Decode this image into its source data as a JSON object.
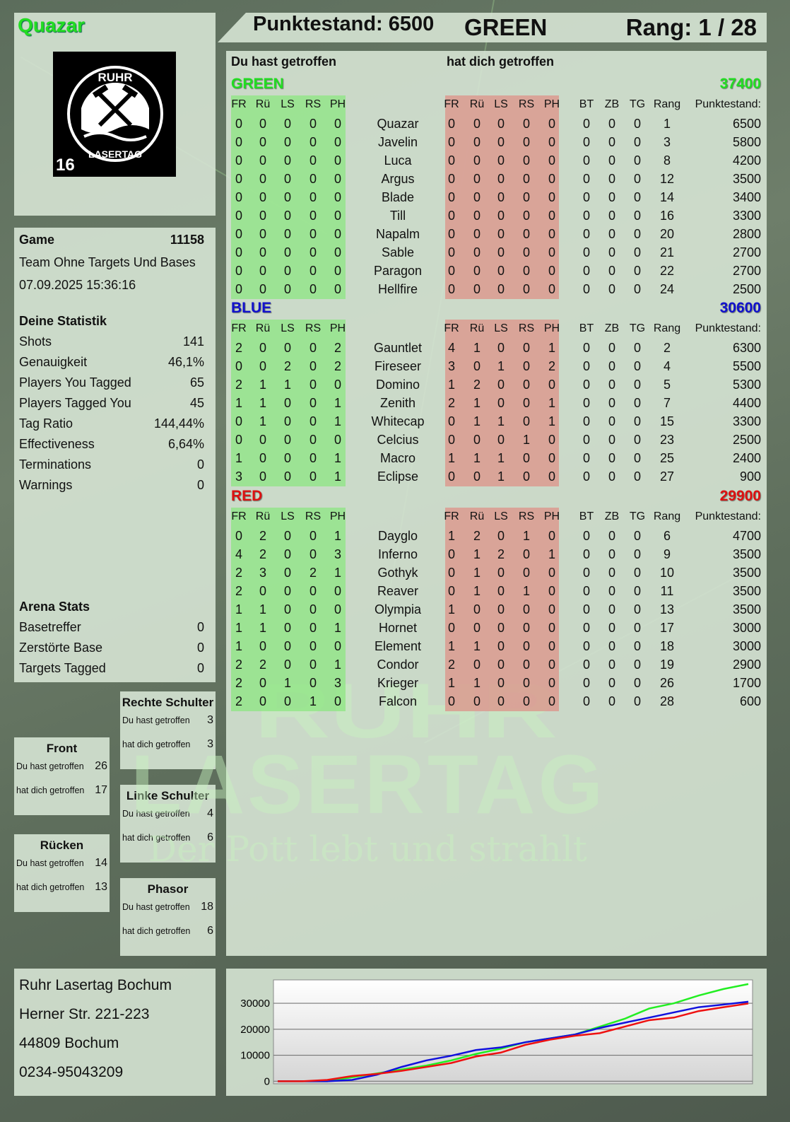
{
  "player": {
    "name": "Quazar",
    "color": "#22dd22"
  },
  "logo": {
    "top_text": "RUHR",
    "bottom_text": "LASERTAG",
    "age": "16"
  },
  "header": {
    "score": "Punktestand: 6500",
    "team": "GREEN",
    "rank": "Rang: 1 / 28"
  },
  "game": {
    "label": "Game",
    "number": "11158",
    "mode": "Team Ohne Targets Und Bases",
    "datetime": "07.09.2025 15:36:16"
  },
  "stats": {
    "title": "Deine Statistik",
    "items": [
      {
        "label": "Shots",
        "value": "141"
      },
      {
        "label": "Genauigkeit",
        "value": "46,1%"
      },
      {
        "label": "Players You Tagged",
        "value": "65"
      },
      {
        "label": "Players Tagged You",
        "value": "45"
      },
      {
        "label": "Tag Ratio",
        "value": "144,44%"
      },
      {
        "label": "Effectiveness",
        "value": "6,64%"
      },
      {
        "label": "Terminations",
        "value": "0"
      },
      {
        "label": "Warnings",
        "value": "0"
      }
    ]
  },
  "arena": {
    "title": "Arena Stats",
    "items": [
      {
        "label": "Basetreffer",
        "value": "0"
      },
      {
        "label": "Zerstörte Base",
        "value": "0"
      },
      {
        "label": "Targets Tagged",
        "value": "0"
      }
    ]
  },
  "hitzones": [
    {
      "title": "Rechte Schulter",
      "given_label": "Du hast getroffen",
      "given": "3",
      "taken_label": "hat dich getroffen",
      "taken": "3"
    },
    {
      "title": "Front",
      "given_label": "Du hast getroffen",
      "given": "26",
      "taken_label": "hat dich getroffen",
      "taken": "17"
    },
    {
      "title": "Linke Schulter",
      "given_label": "Du hast getroffen",
      "given": "4",
      "taken_label": "hat dich getroffen",
      "taken": "6"
    },
    {
      "title": "Rücken",
      "given_label": "Du hast getroffen",
      "given": "14",
      "taken_label": "hat dich getroffen",
      "taken": "13"
    },
    {
      "title": "Phasor",
      "given_label": "Du hast getroffen",
      "given": "18",
      "taken_label": "hat dich getroffen",
      "taken": "6"
    }
  ],
  "address": {
    "lines": [
      "Ruhr Lasertag Bochum",
      "Herner Str. 221-223",
      "44809 Bochum",
      "0234-95043209"
    ]
  },
  "watermark": {
    "line1": "RUHR",
    "line2": "LASERTAG",
    "slogan": "Der Pott lebt und strahlt"
  },
  "table": {
    "given_title": "Du hast getroffen",
    "taken_title": "hat dich getroffen",
    "hit_columns": [
      "FR",
      "Rü",
      "LS",
      "RS",
      "PH"
    ],
    "extra_columns": [
      "BT",
      "ZB",
      "TG",
      "Rang",
      "Punktestand:"
    ],
    "teams": [
      {
        "name": "GREEN",
        "total": "37400",
        "color": "#22dd22",
        "players": [
          {
            "name": "Quazar",
            "du": [
              0,
              0,
              0,
              0,
              0
            ],
            "dich": [
              0,
              0,
              0,
              0,
              0
            ],
            "bt": 0,
            "zb": 0,
            "tg": 0,
            "rang": 1,
            "punkte": 6500
          },
          {
            "name": "Javelin",
            "du": [
              0,
              0,
              0,
              0,
              0
            ],
            "dich": [
              0,
              0,
              0,
              0,
              0
            ],
            "bt": 0,
            "zb": 0,
            "tg": 0,
            "rang": 3,
            "punkte": 5800
          },
          {
            "name": "Luca",
            "du": [
              0,
              0,
              0,
              0,
              0
            ],
            "dich": [
              0,
              0,
              0,
              0,
              0
            ],
            "bt": 0,
            "zb": 0,
            "tg": 0,
            "rang": 8,
            "punkte": 4200
          },
          {
            "name": "Argus",
            "du": [
              0,
              0,
              0,
              0,
              0
            ],
            "dich": [
              0,
              0,
              0,
              0,
              0
            ],
            "bt": 0,
            "zb": 0,
            "tg": 0,
            "rang": 12,
            "punkte": 3500
          },
          {
            "name": "Blade",
            "du": [
              0,
              0,
              0,
              0,
              0
            ],
            "dich": [
              0,
              0,
              0,
              0,
              0
            ],
            "bt": 0,
            "zb": 0,
            "tg": 0,
            "rang": 14,
            "punkte": 3400
          },
          {
            "name": "Till",
            "du": [
              0,
              0,
              0,
              0,
              0
            ],
            "dich": [
              0,
              0,
              0,
              0,
              0
            ],
            "bt": 0,
            "zb": 0,
            "tg": 0,
            "rang": 16,
            "punkte": 3300
          },
          {
            "name": "Napalm",
            "du": [
              0,
              0,
              0,
              0,
              0
            ],
            "dich": [
              0,
              0,
              0,
              0,
              0
            ],
            "bt": 0,
            "zb": 0,
            "tg": 0,
            "rang": 20,
            "punkte": 2800
          },
          {
            "name": "Sable",
            "du": [
              0,
              0,
              0,
              0,
              0
            ],
            "dich": [
              0,
              0,
              0,
              0,
              0
            ],
            "bt": 0,
            "zb": 0,
            "tg": 0,
            "rang": 21,
            "punkte": 2700
          },
          {
            "name": "Paragon",
            "du": [
              0,
              0,
              0,
              0,
              0
            ],
            "dich": [
              0,
              0,
              0,
              0,
              0
            ],
            "bt": 0,
            "zb": 0,
            "tg": 0,
            "rang": 22,
            "punkte": 2700
          },
          {
            "name": "Hellfire",
            "du": [
              0,
              0,
              0,
              0,
              0
            ],
            "dich": [
              0,
              0,
              0,
              0,
              0
            ],
            "bt": 0,
            "zb": 0,
            "tg": 0,
            "rang": 24,
            "punkte": 2500
          }
        ]
      },
      {
        "name": "BLUE",
        "total": "30600",
        "color": "#1111cc",
        "players": [
          {
            "name": "Gauntlet",
            "du": [
              2,
              0,
              0,
              0,
              2
            ],
            "dich": [
              4,
              1,
              0,
              0,
              1
            ],
            "bt": 0,
            "zb": 0,
            "tg": 0,
            "rang": 2,
            "punkte": 6300
          },
          {
            "name": "Fireseer",
            "du": [
              0,
              0,
              2,
              0,
              2
            ],
            "dich": [
              3,
              0,
              1,
              0,
              2
            ],
            "bt": 0,
            "zb": 0,
            "tg": 0,
            "rang": 4,
            "punkte": 5500
          },
          {
            "name": "Domino",
            "du": [
              2,
              1,
              1,
              0,
              0
            ],
            "dich": [
              1,
              2,
              0,
              0,
              0
            ],
            "bt": 0,
            "zb": 0,
            "tg": 0,
            "rang": 5,
            "punkte": 5300
          },
          {
            "name": "Zenith",
            "du": [
              1,
              1,
              0,
              0,
              1
            ],
            "dich": [
              2,
              1,
              0,
              0,
              1
            ],
            "bt": 0,
            "zb": 0,
            "tg": 0,
            "rang": 7,
            "punkte": 4400
          },
          {
            "name": "Whitecap",
            "du": [
              0,
              1,
              0,
              0,
              1
            ],
            "dich": [
              0,
              1,
              1,
              0,
              1
            ],
            "bt": 0,
            "zb": 0,
            "tg": 0,
            "rang": 15,
            "punkte": 3300
          },
          {
            "name": "Celcius",
            "du": [
              0,
              0,
              0,
              0,
              0
            ],
            "dich": [
              0,
              0,
              0,
              1,
              0
            ],
            "bt": 0,
            "zb": 0,
            "tg": 0,
            "rang": 23,
            "punkte": 2500
          },
          {
            "name": "Macro",
            "du": [
              1,
              0,
              0,
              0,
              1
            ],
            "dich": [
              1,
              1,
              1,
              0,
              0
            ],
            "bt": 0,
            "zb": 0,
            "tg": 0,
            "rang": 25,
            "punkte": 2400
          },
          {
            "name": "Eclipse",
            "du": [
              3,
              0,
              0,
              0,
              1
            ],
            "dich": [
              0,
              0,
              1,
              0,
              0
            ],
            "bt": 0,
            "zb": 0,
            "tg": 0,
            "rang": 27,
            "punkte": 900
          }
        ]
      },
      {
        "name": "RED",
        "total": "29900",
        "color": "#dd1111",
        "players": [
          {
            "name": "Dayglo",
            "du": [
              0,
              2,
              0,
              0,
              1
            ],
            "dich": [
              1,
              2,
              0,
              1,
              0
            ],
            "bt": 0,
            "zb": 0,
            "tg": 0,
            "rang": 6,
            "punkte": 4700
          },
          {
            "name": "Inferno",
            "du": [
              4,
              2,
              0,
              0,
              3
            ],
            "dich": [
              0,
              1,
              2,
              0,
              1
            ],
            "bt": 0,
            "zb": 0,
            "tg": 0,
            "rang": 9,
            "punkte": 3500
          },
          {
            "name": "Gothyk",
            "du": [
              2,
              3,
              0,
              2,
              1
            ],
            "dich": [
              0,
              1,
              0,
              0,
              0
            ],
            "bt": 0,
            "zb": 0,
            "tg": 0,
            "rang": 10,
            "punkte": 3500
          },
          {
            "name": "Reaver",
            "du": [
              2,
              0,
              0,
              0,
              0
            ],
            "dich": [
              0,
              1,
              0,
              1,
              0
            ],
            "bt": 0,
            "zb": 0,
            "tg": 0,
            "rang": 11,
            "punkte": 3500
          },
          {
            "name": "Olympia",
            "du": [
              1,
              1,
              0,
              0,
              0
            ],
            "dich": [
              1,
              0,
              0,
              0,
              0
            ],
            "bt": 0,
            "zb": 0,
            "tg": 0,
            "rang": 13,
            "punkte": 3500
          },
          {
            "name": "Hornet",
            "du": [
              1,
              1,
              0,
              0,
              1
            ],
            "dich": [
              0,
              0,
              0,
              0,
              0
            ],
            "bt": 0,
            "zb": 0,
            "tg": 0,
            "rang": 17,
            "punkte": 3000
          },
          {
            "name": "Element",
            "du": [
              1,
              0,
              0,
              0,
              0
            ],
            "dich": [
              1,
              1,
              0,
              0,
              0
            ],
            "bt": 0,
            "zb": 0,
            "tg": 0,
            "rang": 18,
            "punkte": 3000
          },
          {
            "name": "Condor",
            "du": [
              2,
              2,
              0,
              0,
              1
            ],
            "dich": [
              2,
              0,
              0,
              0,
              0
            ],
            "bt": 0,
            "zb": 0,
            "tg": 0,
            "rang": 19,
            "punkte": 2900
          },
          {
            "name": "Krieger",
            "du": [
              2,
              0,
              1,
              0,
              3
            ],
            "dich": [
              1,
              1,
              0,
              0,
              0
            ],
            "bt": 0,
            "zb": 0,
            "tg": 0,
            "rang": 26,
            "punkte": 1700
          },
          {
            "name": "Falcon",
            "du": [
              2,
              0,
              0,
              1,
              0
            ],
            "dich": [
              0,
              0,
              0,
              0,
              0
            ],
            "bt": 0,
            "zb": 0,
            "tg": 0,
            "rang": 28,
            "punkte": 600
          }
        ]
      }
    ]
  },
  "chart_data": {
    "type": "line",
    "title": "",
    "xlabel": "",
    "ylabel": "",
    "ylim": [
      -1000,
      39000
    ],
    "yticks": [
      "0",
      "10000",
      "20000",
      "30000"
    ],
    "grid": true,
    "legend": "none",
    "series": [
      {
        "color": "#22ee22",
        "values": [
          0,
          0,
          0,
          1500,
          3000,
          4500,
          6000,
          8000,
          10500,
          12500,
          15000,
          16500,
          18000,
          21000,
          24000,
          28000,
          30000,
          33000,
          35500,
          37400
        ]
      },
      {
        "color": "#1111dd",
        "values": [
          0,
          0,
          0,
          500,
          2500,
          5500,
          8000,
          9800,
          12000,
          13000,
          15000,
          16500,
          18000,
          20500,
          22500,
          24500,
          26500,
          28500,
          29500,
          30600
        ]
      },
      {
        "color": "#ee1111",
        "values": [
          0,
          0,
          500,
          2000,
          2800,
          4000,
          5500,
          7000,
          9500,
          11000,
          14000,
          16000,
          17500,
          18500,
          21000,
          23500,
          24500,
          27000,
          28500,
          29900
        ]
      }
    ]
  }
}
